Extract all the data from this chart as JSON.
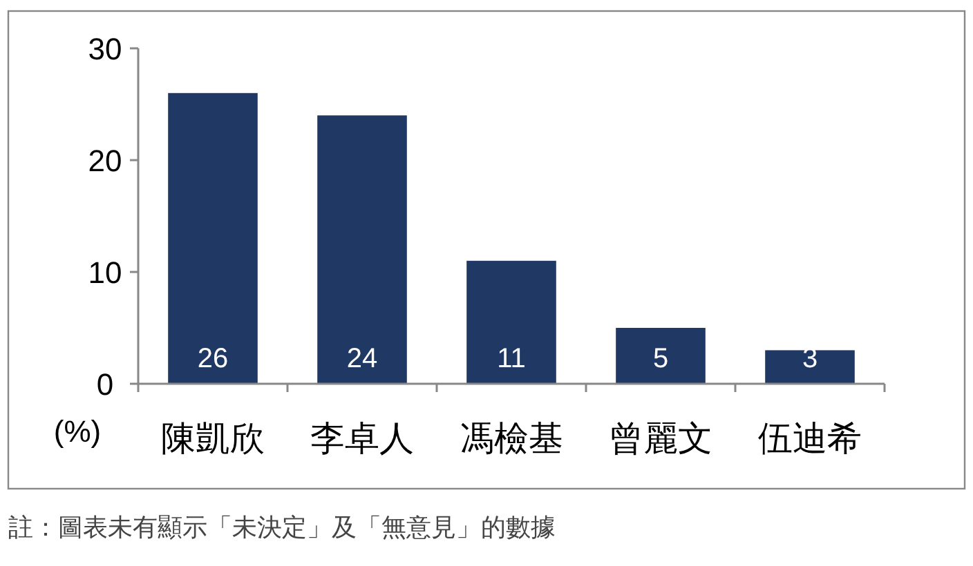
{
  "chart_data": {
    "type": "bar",
    "ylabel": "(%)",
    "categories": [
      "陳凱欣",
      "李卓人",
      "馮檢基",
      "曾麗文",
      "伍迪希"
    ],
    "values": [
      26,
      24,
      11,
      5,
      3
    ],
    "color": "#1f3864",
    "ylim": [
      0,
      30
    ],
    "yticks": [
      0,
      10,
      20,
      30
    ],
    "grid": false,
    "data_labels": true,
    "annotations": [
      "註：圖表未有顯示「未決定」及「無意見」的數據"
    ]
  }
}
